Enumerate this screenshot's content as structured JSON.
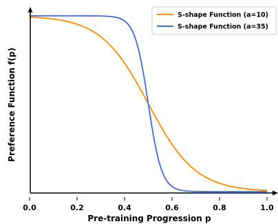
{
  "chart_data": {
    "type": "line",
    "xlabel": "Pre-training Progression p",
    "ylabel": "Preference Function f(p)",
    "xlim": [
      -0.02,
      1.04
    ],
    "ylim": [
      -0.02,
      1.02
    ],
    "x_ticks": [
      "0.0",
      "0.2",
      "0.4",
      "0.6",
      "0.8",
      "1.0"
    ],
    "x_tick_values": [
      0.0,
      0.2,
      0.4,
      0.6,
      0.8,
      1.0
    ],
    "y_ticks_shown": false,
    "legend_position": "top-right",
    "series": [
      {
        "name": "S-shape Function (a=10)",
        "color": "#ff8c00",
        "formula": "1/(1+exp(a*(p-0.5)))",
        "a": 10,
        "x": [
          0.0,
          0.1,
          0.2,
          0.3,
          0.4,
          0.5,
          0.6,
          0.7,
          0.8,
          0.9,
          1.0
        ],
        "values": [
          0.993,
          0.982,
          0.953,
          0.881,
          0.731,
          0.5,
          0.269,
          0.119,
          0.047,
          0.018,
          0.007
        ]
      },
      {
        "name": "S-shape Function (a=35)",
        "color": "#4169e1",
        "formula": "1/(1+exp(a*(p-0.5)))",
        "a": 35,
        "x": [
          0.0,
          0.3,
          0.35,
          0.4,
          0.45,
          0.5,
          0.55,
          0.6,
          0.65,
          0.7,
          1.0
        ],
        "values": [
          1.0,
          0.999,
          0.995,
          0.971,
          0.852,
          0.5,
          0.148,
          0.029,
          0.005,
          0.001,
          0.0
        ]
      }
    ]
  }
}
